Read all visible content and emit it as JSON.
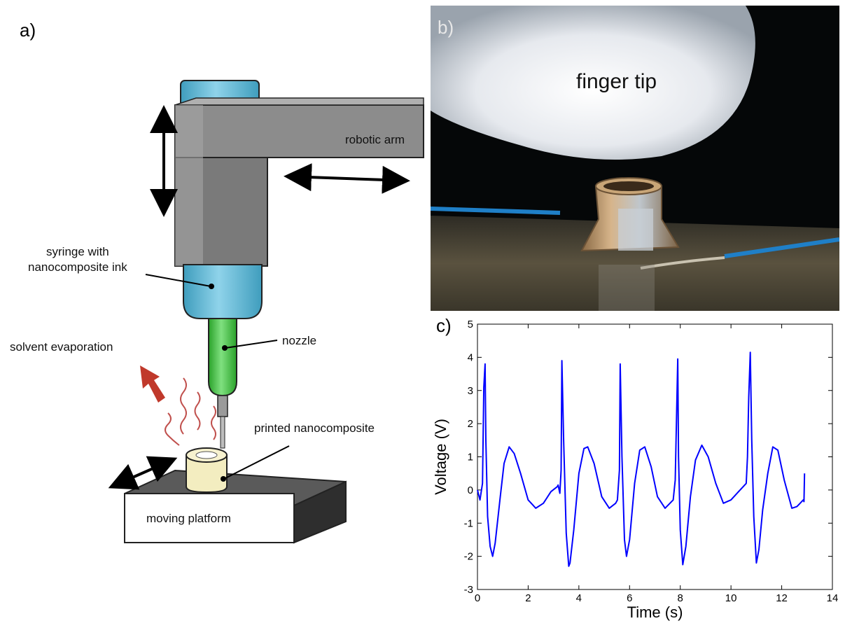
{
  "panel_a": {
    "label": "a)",
    "annotations": {
      "robotic_arm": "robotic arm",
      "syringe": "syringe with\nnanocomposite ink",
      "nozzle": "nozzle",
      "solvent": "solvent evaporation",
      "printed": "printed nanocomposite",
      "platform": "moving platform"
    }
  },
  "panel_b": {
    "label": "b)",
    "finger_label": "finger tip"
  },
  "panel_c": {
    "label": "c)"
  },
  "chart_data": {
    "type": "line",
    "xlabel": "Time (s)",
    "ylabel": "Voltage (V)",
    "xlim": [
      0,
      14
    ],
    "ylim": [
      -3,
      5
    ],
    "xticks": [
      0,
      2,
      4,
      6,
      8,
      10,
      12,
      14
    ],
    "yticks": [
      -3,
      -2,
      -1,
      0,
      1,
      2,
      3,
      4,
      5
    ],
    "grid": false,
    "series": [
      {
        "color": "#0000ff",
        "x": [
          0,
          0.1,
          0.2,
          0.25,
          0.3,
          0.33,
          0.4,
          0.5,
          0.6,
          0.7,
          0.9,
          1.05,
          1.25,
          1.45,
          1.7,
          2.0,
          2.3,
          2.6,
          2.9,
          3.15,
          3.18,
          3.25,
          3.3,
          3.33,
          3.4,
          3.5,
          3.6,
          3.65,
          3.8,
          4.0,
          4.2,
          4.35,
          4.6,
          4.9,
          5.2,
          5.45,
          5.52,
          5.6,
          5.63,
          5.7,
          5.8,
          5.88,
          6.0,
          6.2,
          6.4,
          6.6,
          6.85,
          7.1,
          7.4,
          7.72,
          7.8,
          7.9,
          7.93,
          8.0,
          8.1,
          8.22,
          8.4,
          8.6,
          8.85,
          9.1,
          9.4,
          9.7,
          10.0,
          10.3,
          10.6,
          10.65,
          10.7,
          10.76,
          10.82,
          10.9,
          11.0,
          11.1,
          11.25,
          11.45,
          11.65,
          11.85,
          12.1,
          12.4,
          12.6,
          12.85,
          12.88,
          12.9
        ],
        "y": [
          0,
          -0.3,
          0.2,
          3.1,
          3.8,
          1.5,
          -0.8,
          -1.7,
          -2.0,
          -1.6,
          -0.2,
          0.8,
          1.3,
          1.1,
          0.5,
          -0.3,
          -0.55,
          -0.4,
          -0.05,
          0.1,
          0.15,
          -0.1,
          0.6,
          3.9,
          1.5,
          -1.3,
          -2.3,
          -2.2,
          -1.2,
          0.5,
          1.25,
          1.3,
          0.8,
          -0.2,
          -0.55,
          -0.4,
          -0.3,
          0.6,
          3.8,
          1.0,
          -1.5,
          -2.0,
          -1.5,
          0.2,
          1.2,
          1.3,
          0.7,
          -0.2,
          -0.55,
          -0.3,
          0.3,
          3.95,
          1.0,
          -1.2,
          -2.25,
          -1.7,
          -0.2,
          0.9,
          1.35,
          1.0,
          0.2,
          -0.4,
          -0.3,
          -0.05,
          0.2,
          1.0,
          2.8,
          4.15,
          1.5,
          -0.8,
          -2.2,
          -1.8,
          -0.6,
          0.5,
          1.3,
          1.2,
          0.3,
          -0.55,
          -0.5,
          -0.3,
          -0.35,
          0.5
        ]
      }
    ]
  },
  "colors": {
    "series": "#0000ff",
    "arm_gray": "#8a8a8a",
    "syringe_blue": "#5bb7d4",
    "nozzle_green": "#3cbf3c",
    "solvent_arrow": "#c0392b",
    "wavy": "#c0504d"
  }
}
